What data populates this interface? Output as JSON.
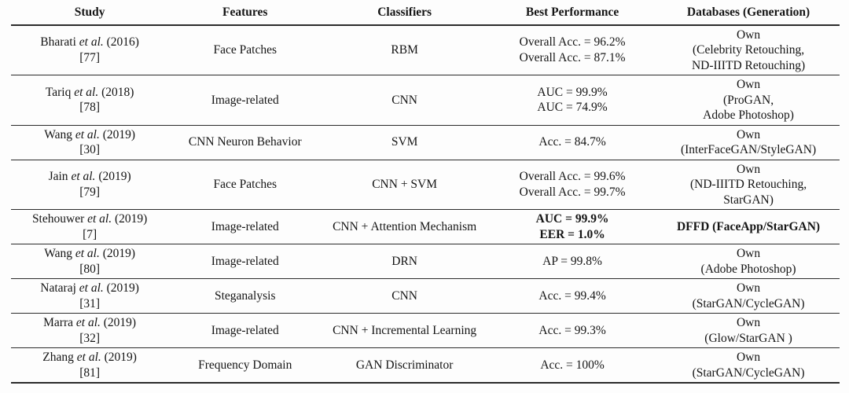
{
  "colors": {
    "background": "#fdfdfd",
    "text": "#151515",
    "rule": "#2b2b2b"
  },
  "table": {
    "headers": [
      "Study",
      "Features",
      "Classifiers",
      "Best Performance",
      "Databases (Generation)"
    ],
    "rows": [
      {
        "study": {
          "author": "Bharati",
          "etal": "et al.",
          "year": "(2016)",
          "ref": "[77]"
        },
        "features": "Face Patches",
        "classifiers": "RBM",
        "performance": [
          "Overall Acc. = 96.2%",
          "Overall Acc. = 87.1%"
        ],
        "databases": [
          "Own",
          "(Celebrity Retouching,",
          "ND-IIITD Retouching)"
        ],
        "bold": false
      },
      {
        "study": {
          "author": "Tariq",
          "etal": "et al.",
          "year": "(2018)",
          "ref": "[78]"
        },
        "features": "Image-related",
        "classifiers": "CNN",
        "performance": [
          "AUC = 99.9%",
          "AUC = 74.9%"
        ],
        "databases": [
          "Own",
          "(ProGAN,",
          "Adobe Photoshop)"
        ],
        "bold": false
      },
      {
        "study": {
          "author": "Wang",
          "etal": "et al.",
          "year": "(2019)",
          "ref": "[30]"
        },
        "features": "CNN Neuron Behavior",
        "classifiers": "SVM",
        "performance": [
          "Acc. = 84.7%"
        ],
        "databases": [
          "Own",
          "(InterFaceGAN/StyleGAN)"
        ],
        "bold": false
      },
      {
        "study": {
          "author": "Jain",
          "etal": "et al.",
          "year": "(2019)",
          "ref": "[79]"
        },
        "features": "Face Patches",
        "classifiers": "CNN + SVM",
        "performance": [
          "Overall Acc. = 99.6%",
          "Overall Acc. = 99.7%"
        ],
        "databases": [
          "Own",
          "(ND-IIITD Retouching,",
          "StarGAN)"
        ],
        "bold": false
      },
      {
        "study": {
          "author": "Stehouwer",
          "etal": "et al.",
          "year": "(2019)",
          "ref": "[7]"
        },
        "features": "Image-related",
        "classifiers": "CNN + Attention Mechanism",
        "performance": [
          "AUC = 99.9%",
          "EER = 1.0%"
        ],
        "databases": [
          "DFFD (FaceApp/StarGAN)"
        ],
        "bold": true
      },
      {
        "study": {
          "author": "Wang",
          "etal": "et al.",
          "year": "(2019)",
          "ref": "[80]"
        },
        "features": "Image-related",
        "classifiers": "DRN",
        "performance": [
          "AP = 99.8%"
        ],
        "databases": [
          "Own",
          "(Adobe Photoshop)"
        ],
        "bold": false
      },
      {
        "study": {
          "author": "Nataraj",
          "etal": "et al.",
          "year": "(2019)",
          "ref": "[31]"
        },
        "features": "Steganalysis",
        "classifiers": "CNN",
        "performance": [
          "Acc. = 99.4%"
        ],
        "databases": [
          "Own",
          "(StarGAN/CycleGAN)"
        ],
        "bold": false
      },
      {
        "study": {
          "author": "Marra",
          "etal": "et al.",
          "year": "(2019)",
          "ref": "[32]"
        },
        "features": "Image-related",
        "classifiers": "CNN + Incremental Learning",
        "performance": [
          "Acc. = 99.3%"
        ],
        "databases": [
          "Own",
          "(Glow/StarGAN )"
        ],
        "bold": false
      },
      {
        "study": {
          "author": "Zhang",
          "etal": "et al.",
          "year": "(2019)",
          "ref": "[81]"
        },
        "features": "Frequency Domain",
        "classifiers": "GAN Discriminator",
        "performance": [
          "Acc. = 100%"
        ],
        "databases": [
          "Own",
          "(StarGAN/CycleGAN)"
        ],
        "bold": false
      }
    ]
  }
}
